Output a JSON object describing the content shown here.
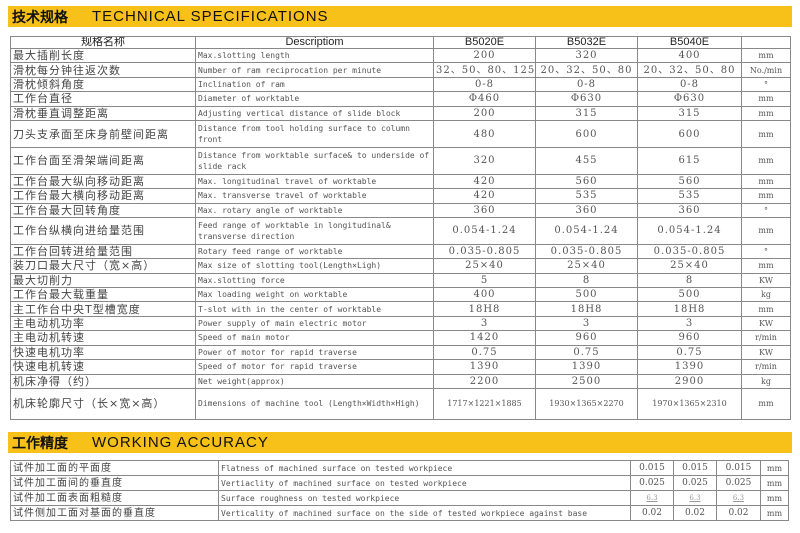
{
  "spec_section": {
    "title_cn": "技术规格",
    "title_en": "TECHNICAL SPECIFICATIONS"
  },
  "spec_table": {
    "headers": [
      "规格名称",
      "Descriptiom",
      "B5020E",
      "B5032E",
      "B5040E",
      ""
    ],
    "rows": [
      [
        "最大插削长度",
        "Max.slotting length",
        "200",
        "320",
        "400",
        "mm"
      ],
      [
        "滑枕每分钟往返次数",
        "Number of ram reciprocation per minute",
        "32、50、80、125",
        "20、32、50、80",
        "20、32、50、80",
        "No./min"
      ],
      [
        "滑枕倾斜角度",
        "Inclination of ram",
        "0-8",
        "0-8",
        "0-8",
        "°"
      ],
      [
        "工作台直径",
        "Diameter of worktable",
        "Φ460",
        "Φ630",
        "Φ630",
        "mm"
      ],
      [
        "滑枕垂直调整距离",
        "Adjusting vertical distance of slide block",
        "200",
        "315",
        "315",
        "mm"
      ],
      [
        "刀头支承面至床身前壁间距离",
        "Distance from tool holding surface to column front",
        "480",
        "600",
        "600",
        "mm"
      ],
      [
        "工作台面至滑架端间距离",
        "Distance from worktable surface& to underside of slide rack",
        "320",
        "455",
        "615",
        "mm"
      ],
      [
        "工作台最大纵向移动距离",
        "Max. longitudinal travel of worktable",
        "420",
        "560",
        "560",
        "mm"
      ],
      [
        "工作台最大横向移动距离",
        "Max. transverse travel of worktable",
        "420",
        "535",
        "535",
        "mm"
      ],
      [
        "工作台最大回转角度",
        "Max. rotary angle of worktable",
        "360",
        "360",
        "360",
        "°"
      ],
      [
        "工作台纵横向进给量范围",
        "Feed range of worktable in longitudinal& transverse direction",
        "0.054-1.24",
        "0.054-1.24",
        "0.054-1.24",
        "mm"
      ],
      [
        "工作台回转进给量范围",
        "Rotary feed range of worktable",
        "0.035-0.805",
        "0.035-0.805",
        "0.035-0.805",
        "°"
      ],
      [
        "装刀口最大尺寸（宽×高）",
        "Max size of slotting tool(Length×Ligh)",
        "25×40",
        "25×40",
        "25×40",
        "mm"
      ],
      [
        "最大切削力",
        "Max.slotting force",
        "5",
        "8",
        "8",
        "KW"
      ],
      [
        "工作台最大载重量",
        "Max loading weight on worktable",
        "400",
        "500",
        "500",
        "kg"
      ],
      [
        "主工作台中央T型槽宽度",
        "T-slot with in the center of worktable",
        "18H8",
        "18H8",
        "18H8",
        "mm"
      ],
      [
        "主电动机功率",
        "Power supply of main electric motor",
        "3",
        "3",
        "3",
        "KW"
      ],
      [
        "主电动机转速",
        "Speed of main motor",
        "1420",
        "960",
        "960",
        "r/min"
      ],
      [
        "快速电机功率",
        "Power of motor for rapid traverse",
        "0.75",
        "0.75",
        "0.75",
        "KW"
      ],
      [
        "快速电机转速",
        "Speed of motor for rapid traverse",
        "1390",
        "1390",
        "1390",
        "r/min"
      ],
      [
        "机床净得（约）",
        "Net weight(approx)",
        "2200",
        "2500",
        "2900",
        "kg"
      ],
      [
        "机床轮廓尺寸（长×宽×高）",
        "Dimensions of machine tool (Length×Width×High)",
        "1717×1221×1885",
        "1930×1365×2270",
        "1970×1365×2310",
        "mm"
      ]
    ]
  },
  "accuracy_section": {
    "title_cn": "工作精度",
    "title_en": "WORKING ACCURACY"
  },
  "accuracy_table": {
    "rows": [
      [
        "试件加工面的平面度",
        "Flatness of machined surface on tested workpiece",
        "0.015",
        "0.015",
        "0.015",
        "mm"
      ],
      [
        "试件加工面间的垂直度",
        "Vertiaclity of machined surface on tested workpiece",
        "0.025",
        "0.025",
        "0.025",
        "mm"
      ],
      [
        "试件加工面表面粗糙度",
        "Surface roughness on tested workpiece",
        "6.3",
        "6.3",
        "6.3",
        "mm"
      ],
      [
        "试件侧加工面对基面的垂直度",
        "Verticality of machined surface on the side of tested workpiece against base",
        "0.02",
        "0.02",
        "0.02",
        "mm"
      ]
    ]
  },
  "colors": {
    "banner": "#f7c11a"
  }
}
